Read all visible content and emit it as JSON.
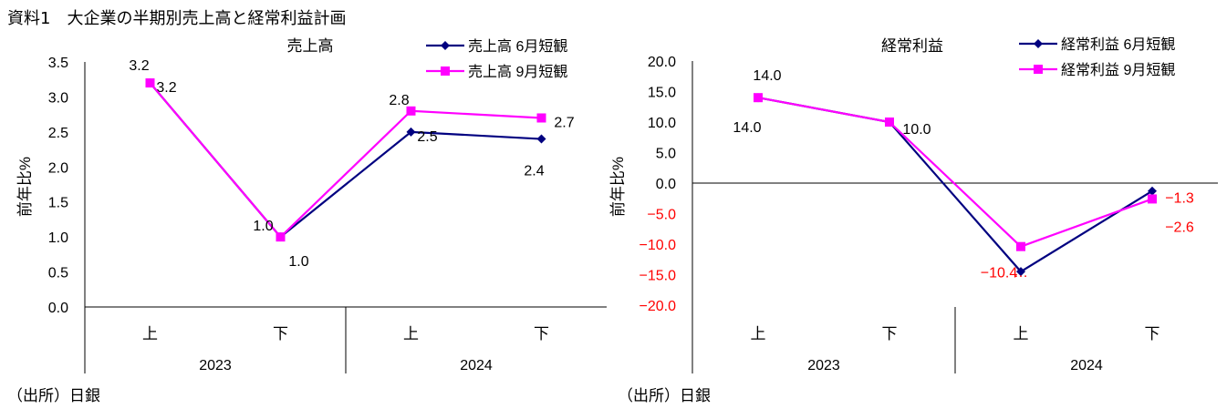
{
  "title": "資料1　大企業の半期別売上高と経常利益計画",
  "source_left": "（出所）日銀",
  "source_right": "（出所）日銀",
  "chart_data": [
    {
      "type": "line",
      "title": "売上高",
      "ylabel": "前年比%",
      "ylim": [
        0,
        3.5
      ],
      "ytick_step": 0.5,
      "ytick_decimals": 1,
      "categories": [
        "上",
        "下",
        "上",
        "下"
      ],
      "groups": [
        {
          "label": "2023",
          "span": 2
        },
        {
          "label": "2024",
          "span": 2
        }
      ],
      "legend": "top-right",
      "grid": false,
      "series": [
        {
          "name": "売上高 6月短観",
          "color": "#000080",
          "marker": "diamond",
          "values": [
            3.2,
            1.0,
            2.5,
            2.4
          ],
          "labels": [
            "3.2",
            "1.0",
            "2.5",
            "2.4"
          ],
          "label_color": "#000000"
        },
        {
          "name": "売上高 9月短観",
          "color": "#FF00FF",
          "marker": "square",
          "values": [
            3.2,
            1.0,
            2.8,
            2.7
          ],
          "labels": [
            "3.2",
            "1.0",
            "2.8",
            "2.7"
          ],
          "label_color": "#000000"
        }
      ]
    },
    {
      "type": "line",
      "title": "経常利益",
      "ylabel": "前年比%",
      "ylim": [
        -20,
        20
      ],
      "ytick_step": 5,
      "ytick_decimals": 1,
      "categories": [
        "上",
        "下",
        "上",
        "下"
      ],
      "groups": [
        {
          "label": "2023",
          "span": 2
        },
        {
          "label": "2024",
          "span": 2
        }
      ],
      "legend": "top-right",
      "grid": false,
      "negative_label_color": "#FF0000",
      "series": [
        {
          "name": "経常利益 6月短観",
          "color": "#000080",
          "marker": "diamond",
          "values": [
            14.0,
            10.0,
            -14.5,
            -1.3
          ],
          "labels": [
            "14.0",
            "10.0",
            "…",
            "−1.3"
          ]
        },
        {
          "name": "経常利益 9月短観",
          "color": "#FF00FF",
          "marker": "square",
          "values": [
            14.0,
            10.0,
            -10.4,
            -2.6
          ],
          "labels": [
            "14.0",
            "",
            "−10.4",
            "−2.6"
          ]
        }
      ]
    }
  ]
}
